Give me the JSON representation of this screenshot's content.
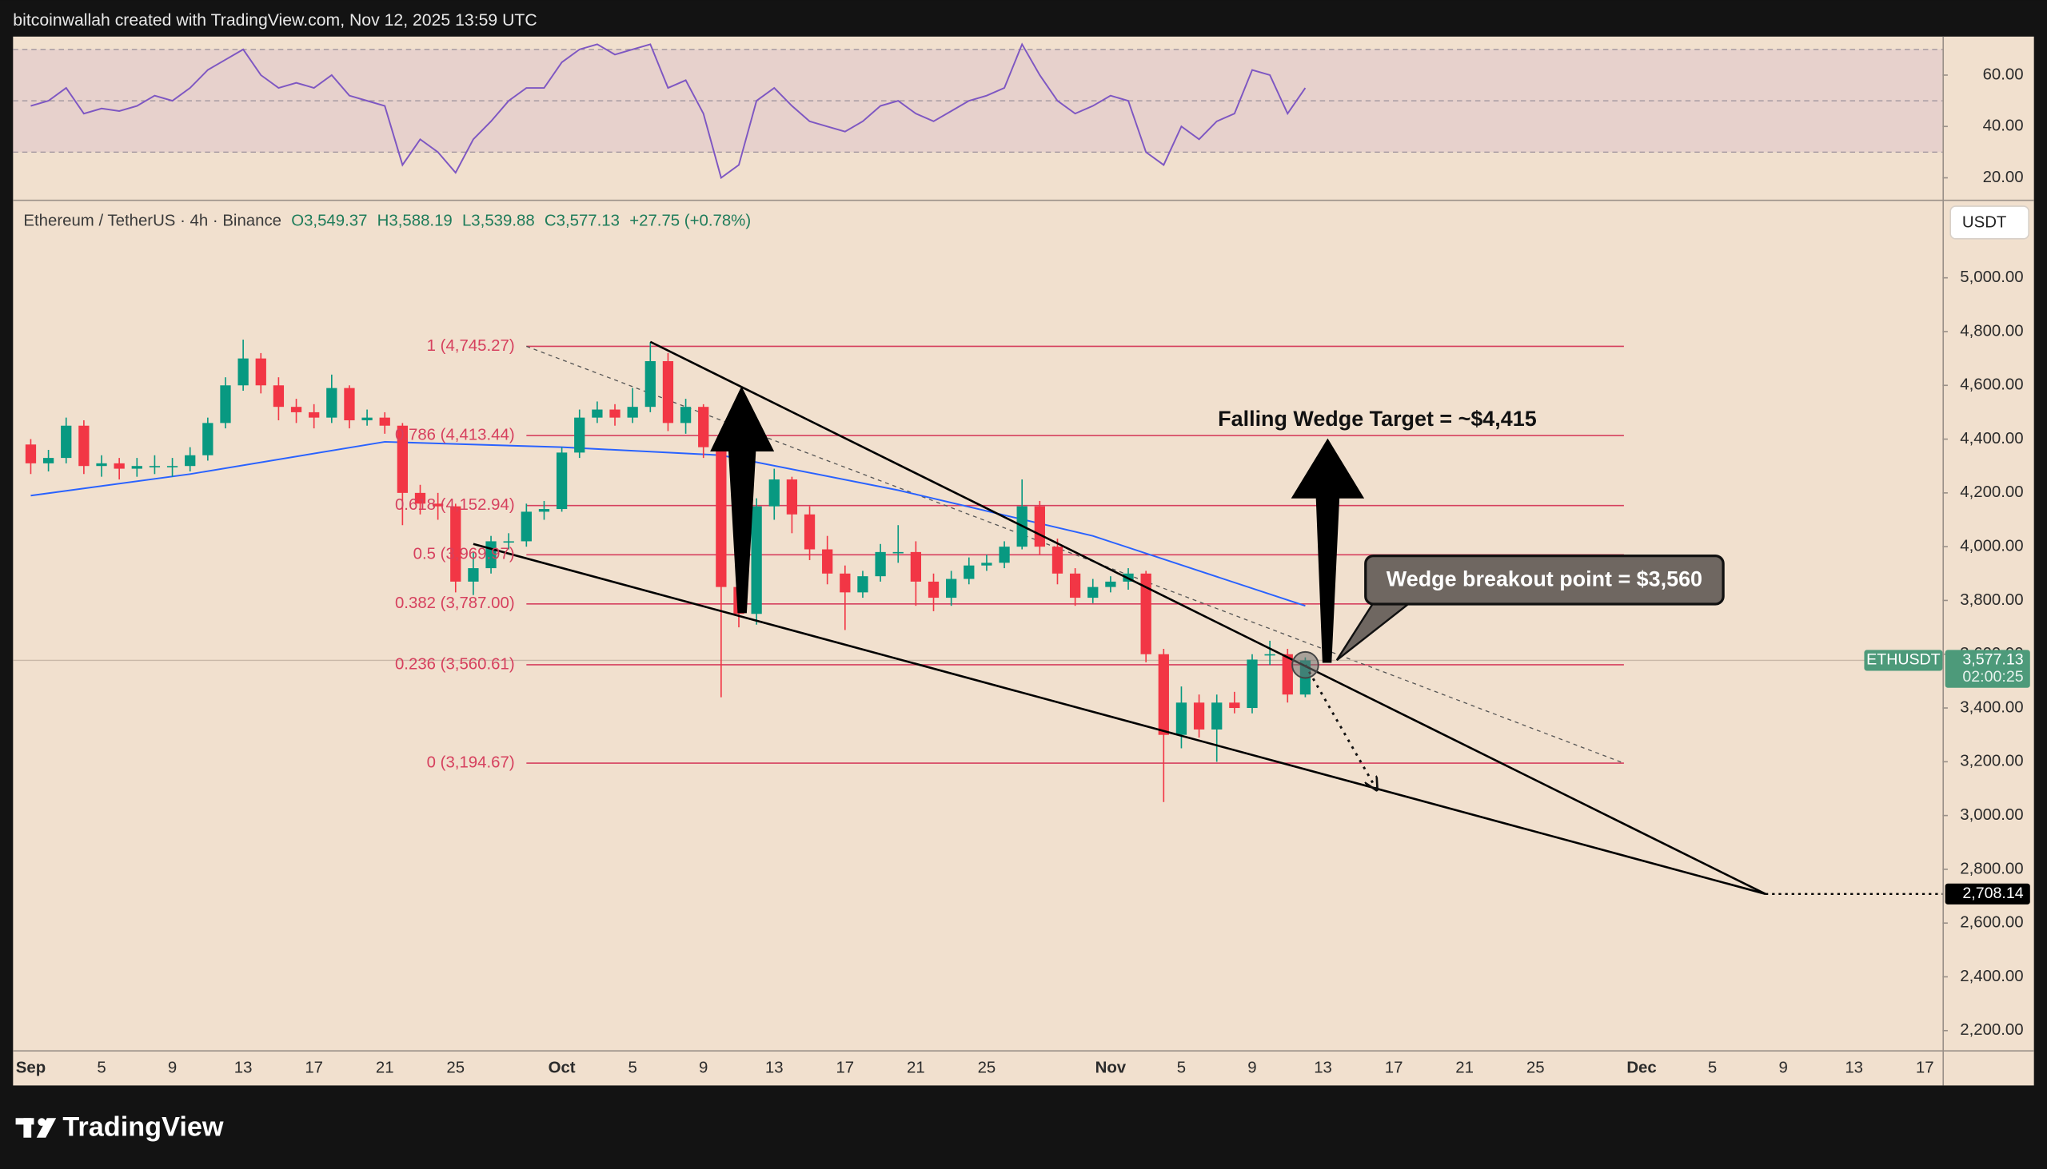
{
  "header": {
    "text": "bitcoinwallah created with TradingView.com, Nov 12, 2025 13:59 UTC"
  },
  "footer": {
    "brand": "TradingView"
  },
  "chart_data": [
    {
      "type": "candlestick",
      "title": "Ethereum / TetherUS · 4h · Binance",
      "legend_text": [
        "O3,549.37",
        "H3,588.19",
        "L3,539.88",
        "C3,577.13",
        "+27.75 (+0.78%)"
      ],
      "currency": "USDT",
      "up_color": "#089981",
      "down_color": "#f23645",
      "x": [
        "2025-09-01",
        "2025-09-02",
        "2025-09-03",
        "2025-09-04",
        "2025-09-05",
        "2025-09-06",
        "2025-09-07",
        "2025-09-08",
        "2025-09-09",
        "2025-09-10",
        "2025-09-11",
        "2025-09-12",
        "2025-09-13",
        "2025-09-14",
        "2025-09-15",
        "2025-09-16",
        "2025-09-17",
        "2025-09-18",
        "2025-09-19",
        "2025-09-20",
        "2025-09-21",
        "2025-09-22",
        "2025-09-23",
        "2025-09-24",
        "2025-09-25",
        "2025-09-26",
        "2025-09-27",
        "2025-09-28",
        "2025-09-29",
        "2025-09-30",
        "2025-10-01",
        "2025-10-02",
        "2025-10-03",
        "2025-10-04",
        "2025-10-05",
        "2025-10-06",
        "2025-10-07",
        "2025-10-08",
        "2025-10-09",
        "2025-10-10",
        "2025-10-11",
        "2025-10-12",
        "2025-10-13",
        "2025-10-14",
        "2025-10-15",
        "2025-10-16",
        "2025-10-17",
        "2025-10-18",
        "2025-10-19",
        "2025-10-20",
        "2025-10-21",
        "2025-10-22",
        "2025-10-23",
        "2025-10-24",
        "2025-10-25",
        "2025-10-26",
        "2025-10-27",
        "2025-10-28",
        "2025-10-29",
        "2025-10-30",
        "2025-10-31",
        "2025-11-01",
        "2025-11-02",
        "2025-11-03",
        "2025-11-04",
        "2025-11-05",
        "2025-11-06",
        "2025-11-07",
        "2025-11-08",
        "2025-11-09",
        "2025-11-10",
        "2025-11-11",
        "2025-11-12"
      ],
      "open": [
        4380,
        4310,
        4330,
        4450,
        4300,
        4310,
        4290,
        4300,
        4300,
        4300,
        4340,
        4460,
        4600,
        4700,
        4600,
        4520,
        4500,
        4480,
        4590,
        4470,
        4480,
        4450,
        4200,
        4160,
        4150,
        3870,
        3920,
        4020,
        4020,
        4130,
        4140,
        4350,
        4480,
        4510,
        4480,
        4520,
        4690,
        4460,
        4520,
        4370,
        3850,
        3750,
        4150,
        4250,
        4120,
        3990,
        3900,
        3830,
        3890,
        3980,
        3980,
        3870,
        3810,
        3880,
        3930,
        3940,
        4000,
        4150,
        4000,
        3900,
        3810,
        3850,
        3870,
        3900,
        3600,
        3300,
        3420,
        3320,
        3420,
        3400,
        3600,
        3600,
        3450
      ],
      "high": [
        4400,
        4360,
        4480,
        4470,
        4340,
        4330,
        4330,
        4340,
        4330,
        4370,
        4480,
        4630,
        4770,
        4720,
        4630,
        4550,
        4530,
        4640,
        4600,
        4510,
        4500,
        4460,
        4230,
        4200,
        4160,
        3980,
        4040,
        4050,
        4160,
        4170,
        4370,
        4510,
        4540,
        4530,
        4590,
        4760,
        4720,
        4550,
        4530,
        4390,
        3900,
        4180,
        4290,
        4260,
        4150,
        4040,
        3930,
        3910,
        4010,
        4080,
        4020,
        3900,
        3910,
        3960,
        3970,
        4020,
        4250,
        4170,
        4030,
        3920,
        3880,
        3890,
        3920,
        3910,
        3620,
        3480,
        3450,
        3450,
        3460,
        3600,
        3650,
        3620,
        3588.19
      ],
      "low": [
        4270,
        4280,
        4310,
        4270,
        4260,
        4250,
        4260,
        4270,
        4260,
        4280,
        4320,
        4440,
        4580,
        4570,
        4470,
        4460,
        4440,
        4460,
        4440,
        4450,
        4420,
        4080,
        4120,
        4100,
        3830,
        3820,
        3900,
        3990,
        4000,
        4100,
        4130,
        4330,
        4460,
        4450,
        4460,
        4500,
        4430,
        4420,
        4330,
        3440,
        3700,
        3710,
        4100,
        4050,
        3950,
        3860,
        3690,
        3810,
        3870,
        3940,
        3780,
        3760,
        3780,
        3860,
        3910,
        3920,
        3990,
        3970,
        3860,
        3780,
        3790,
        3830,
        3840,
        3570,
        3050,
        3250,
        3290,
        3200,
        3380,
        3380,
        3560,
        3420,
        3440
      ],
      "close": [
        4310,
        4330,
        4450,
        4300,
        4310,
        4290,
        4300,
        4300,
        4300,
        4340,
        4460,
        4600,
        4700,
        4600,
        4520,
        4500,
        4480,
        4590,
        4470,
        4480,
        4450,
        4200,
        4160,
        4150,
        3870,
        3920,
        4020,
        4020,
        4130,
        4140,
        4350,
        4480,
        4510,
        4480,
        4520,
        4690,
        4460,
        4520,
        4370,
        3850,
        3750,
        4150,
        4250,
        4120,
        3990,
        3900,
        3830,
        3890,
        3980,
        3980,
        3870,
        3810,
        3880,
        3930,
        3940,
        4000,
        4150,
        4000,
        3900,
        3810,
        3850,
        3870,
        3900,
        3600,
        3300,
        3420,
        3320,
        3420,
        3400,
        3580,
        3600,
        3450,
        3577.13
      ],
      "xlim": [
        "2025-08-31",
        "2025-12-18"
      ],
      "ylim": [
        2127,
        5281
      ],
      "yticks": [
        {
          "value": 5000,
          "label": "5,000.00"
        },
        {
          "value": 4800,
          "label": "4,800.00"
        },
        {
          "value": 4600,
          "label": "4,600.00"
        },
        {
          "value": 4400,
          "label": "4,400.00"
        },
        {
          "value": 4200,
          "label": "4,200.00"
        },
        {
          "value": 4000,
          "label": "4,000.00"
        },
        {
          "value": 3800,
          "label": "3,800.00"
        },
        {
          "value": 3600,
          "label": "3,600.00"
        },
        {
          "value": 3400,
          "label": "3,400.00"
        },
        {
          "value": 3200,
          "label": "3,200.00"
        },
        {
          "value": 3000,
          "label": "3,000.00"
        },
        {
          "value": 2800,
          "label": "2,800.00"
        },
        {
          "value": 2600,
          "label": "2,600.00"
        },
        {
          "value": 2400,
          "label": "2,400.00"
        },
        {
          "value": 2200,
          "label": "2,200.00"
        }
      ],
      "xticks": [
        {
          "value": "2025-09-01",
          "label": "Sep"
        },
        {
          "value": "2025-09-05",
          "label": "5"
        },
        {
          "value": "2025-09-09",
          "label": "9"
        },
        {
          "value": "2025-09-13",
          "label": "13"
        },
        {
          "value": "2025-09-17",
          "label": "17"
        },
        {
          "value": "2025-09-21",
          "label": "21"
        },
        {
          "value": "2025-09-25",
          "label": "25"
        },
        {
          "value": "2025-10-01",
          "label": "Oct"
        },
        {
          "value": "2025-10-05",
          "label": "5"
        },
        {
          "value": "2025-10-09",
          "label": "9"
        },
        {
          "value": "2025-10-13",
          "label": "13"
        },
        {
          "value": "2025-10-17",
          "label": "17"
        },
        {
          "value": "2025-10-21",
          "label": "21"
        },
        {
          "value": "2025-10-25",
          "label": "25"
        },
        {
          "value": "2025-11-01",
          "label": "Nov"
        },
        {
          "value": "2025-11-05",
          "label": "5"
        },
        {
          "value": "2025-11-09",
          "label": "9"
        },
        {
          "value": "2025-11-13",
          "label": "13"
        },
        {
          "value": "2025-11-17",
          "label": "17"
        },
        {
          "value": "2025-11-21",
          "label": "21"
        },
        {
          "value": "2025-11-25",
          "label": "25"
        },
        {
          "value": "2025-12-01",
          "label": "Dec"
        },
        {
          "value": "2025-12-05",
          "label": "5"
        },
        {
          "value": "2025-12-09",
          "label": "9"
        },
        {
          "value": "2025-12-13",
          "label": "13"
        },
        {
          "value": "2025-12-17",
          "label": "17"
        }
      ],
      "overlays": [
        {
          "color": "#2962ff",
          "x": [
            "2025-09-01",
            "2025-09-10",
            "2025-09-21",
            "2025-10-01",
            "2025-10-10",
            "2025-10-20",
            "2025-10-31",
            "2025-11-12"
          ],
          "values": [
            4190,
            4270,
            4390,
            4370,
            4340,
            4210,
            4040,
            3780
          ]
        }
      ],
      "fib": {
        "color": "#d6405e",
        "start": "2025-09-29",
        "end": "2025-11-30",
        "values": [
          4745.27,
          4413.44,
          4152.94,
          3969.97,
          3787.0,
          3560.61,
          3194.67
        ],
        "value_labels": [
          "1 (4,745.27)",
          "0.786 (4,413.44)",
          "0.618 (4,152.94)",
          "0.5 (3,969.97)",
          "0.382 (3,787.00)",
          "0.236 (3,560.61)",
          "0 (3,194.67)"
        ]
      },
      "wedge": [
        {
          "x": [
            "2025-10-06",
            "2025-12-08"
          ],
          "values": [
            4762,
            2708.14
          ]
        },
        {
          "x": [
            "2025-09-26",
            "2025-12-08"
          ],
          "values": [
            4010,
            2708.14
          ]
        }
      ],
      "projection": {
        "x": [
          "2025-11-12",
          "2025-11-16"
        ],
        "values": [
          3560,
          3100
        ]
      },
      "target_line": {
        "value": 2708.14,
        "label": "2,708.14"
      },
      "last_price": {
        "value": 3577.13,
        "label": "3,577.13",
        "symbol": "ETHUSDT",
        "countdown": "02:00:25",
        "color": "#4d9a7a"
      },
      "annotations": [
        "Falling Wedge Target = ~$4,415",
        "Wedge breakout point = $3,560"
      ]
    },
    {
      "type": "line",
      "color": "#7e57c2",
      "x": [
        "2025-09-01",
        "2025-09-02",
        "2025-09-03",
        "2025-09-04",
        "2025-09-05",
        "2025-09-06",
        "2025-09-07",
        "2025-09-08",
        "2025-09-09",
        "2025-09-10",
        "2025-09-11",
        "2025-09-12",
        "2025-09-13",
        "2025-09-14",
        "2025-09-15",
        "2025-09-16",
        "2025-09-17",
        "2025-09-18",
        "2025-09-19",
        "2025-09-20",
        "2025-09-21",
        "2025-09-22",
        "2025-09-23",
        "2025-09-24",
        "2025-09-25",
        "2025-09-26",
        "2025-09-27",
        "2025-09-28",
        "2025-09-29",
        "2025-09-30",
        "2025-10-01",
        "2025-10-02",
        "2025-10-03",
        "2025-10-04",
        "2025-10-05",
        "2025-10-06",
        "2025-10-07",
        "2025-10-08",
        "2025-10-09",
        "2025-10-10",
        "2025-10-11",
        "2025-10-12",
        "2025-10-13",
        "2025-10-14",
        "2025-10-15",
        "2025-10-16",
        "2025-10-17",
        "2025-10-18",
        "2025-10-19",
        "2025-10-20",
        "2025-10-21",
        "2025-10-22",
        "2025-10-23",
        "2025-10-24",
        "2025-10-25",
        "2025-10-26",
        "2025-10-27",
        "2025-10-28",
        "2025-10-29",
        "2025-10-30",
        "2025-10-31",
        "2025-11-01",
        "2025-11-02",
        "2025-11-03",
        "2025-11-04",
        "2025-11-05",
        "2025-11-06",
        "2025-11-07",
        "2025-11-08",
        "2025-11-09",
        "2025-11-10",
        "2025-11-11",
        "2025-11-12"
      ],
      "values": [
        48,
        50,
        55,
        45,
        47,
        46,
        48,
        52,
        50,
        55,
        62,
        66,
        70,
        60,
        55,
        57,
        55,
        60,
        52,
        50,
        48,
        25,
        35,
        30,
        22,
        35,
        42,
        50,
        55,
        55,
        65,
        70,
        72,
        68,
        70,
        72,
        55,
        58,
        45,
        20,
        25,
        50,
        55,
        48,
        42,
        40,
        38,
        42,
        48,
        50,
        45,
        42,
        46,
        50,
        52,
        55,
        72,
        60,
        50,
        45,
        48,
        52,
        50,
        30,
        25,
        40,
        35,
        42,
        45,
        62,
        60,
        45,
        55
      ],
      "xlim": [
        "2025-08-31",
        "2025-12-18"
      ],
      "ylim": [
        12,
        75
      ],
      "yticks": [
        {
          "value": 60,
          "label": "60.00"
        },
        {
          "value": 40,
          "label": "40.00"
        },
        {
          "value": 20,
          "label": "20.00"
        }
      ],
      "band_lines": [
        70,
        50,
        30
      ]
    }
  ]
}
